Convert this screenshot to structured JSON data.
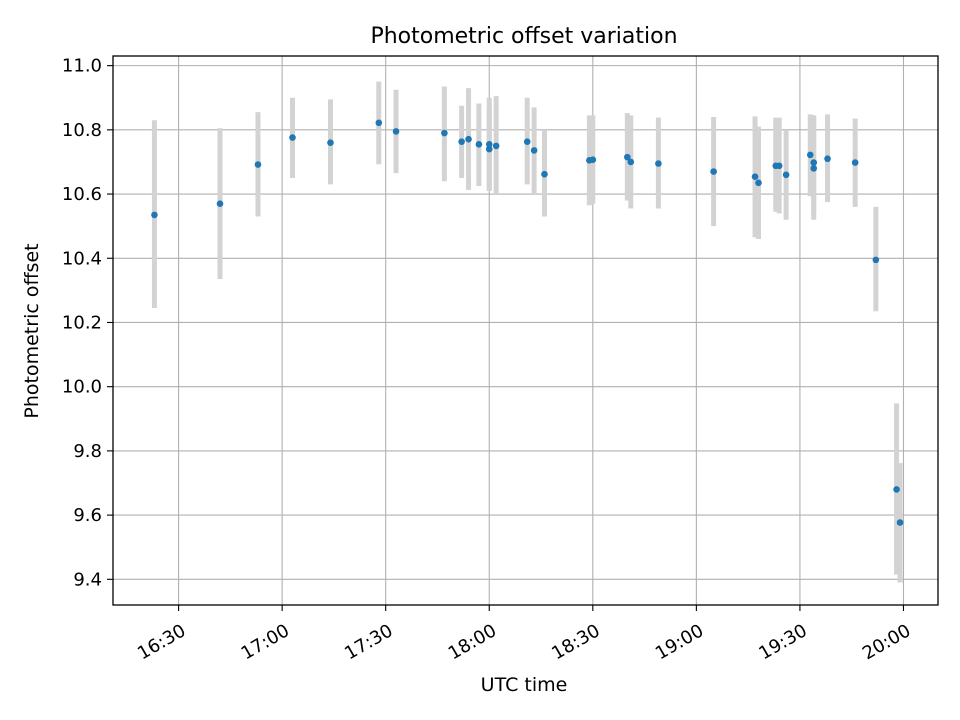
{
  "chart_data": {
    "type": "scatter",
    "title": "Photometric offset variation",
    "xlabel": "UTC time",
    "ylabel": "Photometric offset",
    "grid": true,
    "xlim": [
      "16:11",
      "20:10"
    ],
    "ylim": [
      9.32,
      11.03
    ],
    "x_ticks": [
      "16:30",
      "17:00",
      "17:30",
      "18:00",
      "18:30",
      "19:00",
      "19:30",
      "20:00"
    ],
    "y_ticks": [
      9.4,
      9.6,
      9.8,
      10.0,
      10.2,
      10.4,
      10.6,
      10.8,
      11.0
    ],
    "marker_color": "#1f77b4",
    "errorbar_color": "#d3d3d3",
    "points": [
      {
        "x": "16:23",
        "y": 10.535,
        "lo": 10.245,
        "hi": 10.83
      },
      {
        "x": "16:42",
        "y": 10.57,
        "lo": 10.335,
        "hi": 10.805
      },
      {
        "x": "16:53",
        "y": 10.692,
        "lo": 10.53,
        "hi": 10.855
      },
      {
        "x": "17:03",
        "y": 10.776,
        "lo": 10.65,
        "hi": 10.9
      },
      {
        "x": "17:14",
        "y": 10.76,
        "lo": 10.63,
        "hi": 10.895
      },
      {
        "x": "17:28",
        "y": 10.822,
        "lo": 10.693,
        "hi": 10.95
      },
      {
        "x": "17:33",
        "y": 10.795,
        "lo": 10.665,
        "hi": 10.925
      },
      {
        "x": "17:47",
        "y": 10.79,
        "lo": 10.64,
        "hi": 10.935
      },
      {
        "x": "17:52",
        "y": 10.763,
        "lo": 10.65,
        "hi": 10.875
      },
      {
        "x": "17:54",
        "y": 10.771,
        "lo": 10.613,
        "hi": 10.93
      },
      {
        "x": "17:57",
        "y": 10.755,
        "lo": 10.625,
        "hi": 10.882
      },
      {
        "x": "18:00",
        "y": 10.74,
        "lo": 10.61,
        "hi": 10.87
      },
      {
        "x": "18:00",
        "y": 10.755,
        "lo": 10.61,
        "hi": 10.9
      },
      {
        "x": "18:02",
        "y": 10.75,
        "lo": 10.6,
        "hi": 10.905
      },
      {
        "x": "18:11",
        "y": 10.763,
        "lo": 10.63,
        "hi": 10.9
      },
      {
        "x": "18:13",
        "y": 10.736,
        "lo": 10.6,
        "hi": 10.87
      },
      {
        "x": "18:16",
        "y": 10.662,
        "lo": 10.53,
        "hi": 10.8
      },
      {
        "x": "18:29",
        "y": 10.705,
        "lo": 10.565,
        "hi": 10.845
      },
      {
        "x": "18:30",
        "y": 10.707,
        "lo": 10.57,
        "hi": 10.845
      },
      {
        "x": "18:40",
        "y": 10.715,
        "lo": 10.58,
        "hi": 10.852
      },
      {
        "x": "18:41",
        "y": 10.7,
        "lo": 10.555,
        "hi": 10.845
      },
      {
        "x": "18:49",
        "y": 10.695,
        "lo": 10.555,
        "hi": 10.838
      },
      {
        "x": "19:05",
        "y": 10.67,
        "lo": 10.5,
        "hi": 10.84
      },
      {
        "x": "19:17",
        "y": 10.654,
        "lo": 10.465,
        "hi": 10.842
      },
      {
        "x": "19:18",
        "y": 10.635,
        "lo": 10.46,
        "hi": 10.81
      },
      {
        "x": "19:23",
        "y": 10.688,
        "lo": 10.545,
        "hi": 10.838
      },
      {
        "x": "19:24",
        "y": 10.688,
        "lo": 10.54,
        "hi": 10.838
      },
      {
        "x": "19:26",
        "y": 10.66,
        "lo": 10.52,
        "hi": 10.8
      },
      {
        "x": "19:33",
        "y": 10.722,
        "lo": 10.593,
        "hi": 10.848
      },
      {
        "x": "19:34",
        "y": 10.68,
        "lo": 10.52,
        "hi": 10.845
      },
      {
        "x": "19:34",
        "y": 10.698,
        "lo": 10.545,
        "hi": 10.845
      },
      {
        "x": "19:38",
        "y": 10.71,
        "lo": 10.575,
        "hi": 10.848
      },
      {
        "x": "19:46",
        "y": 10.698,
        "lo": 10.56,
        "hi": 10.835
      },
      {
        "x": "19:52",
        "y": 10.395,
        "lo": 10.235,
        "hi": 10.56
      },
      {
        "x": "19:58",
        "y": 9.68,
        "lo": 9.415,
        "hi": 9.948
      },
      {
        "x": "19:59",
        "y": 9.577,
        "lo": 9.39,
        "hi": 9.762
      }
    ]
  }
}
